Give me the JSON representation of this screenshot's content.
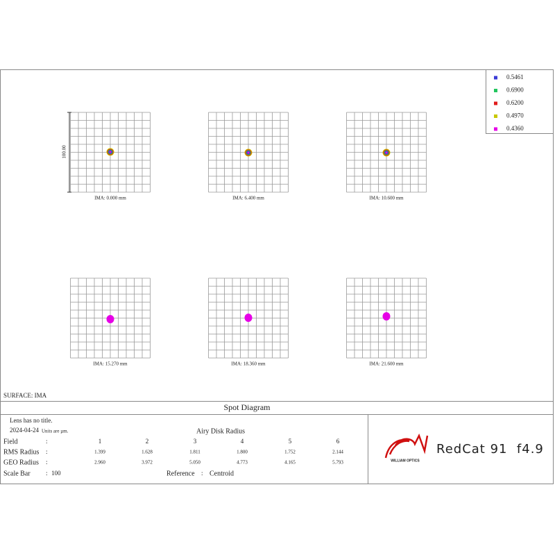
{
  "legend": {
    "items": [
      {
        "label": "0.5461",
        "color": "#3b3bd6"
      },
      {
        "label": "0.6900",
        "color": "#22c55e"
      },
      {
        "label": "0.6200",
        "color": "#e11d1d"
      },
      {
        "label": "0.4970",
        "color": "#c8c800"
      },
      {
        "label": "0.4360",
        "color": "#e600e6"
      }
    ]
  },
  "scale_label": "100.00",
  "panels": [
    {
      "label": "IMA: 0.000 mm"
    },
    {
      "label": "IMA: 6.400 mm"
    },
    {
      "label": "IMA: 10.600 mm"
    },
    {
      "label": "IMA: 15.270 mm"
    },
    {
      "label": "IMA: 18.360 mm"
    },
    {
      "label": "IMA: 21.600 mm"
    }
  ],
  "surface": "SURFACE: IMA",
  "title": "Spot Diagram",
  "info": {
    "lens": "Lens has no title.",
    "date": "2024-04-24",
    "units": "Units are µm.",
    "airy": "Airy Disk Radius",
    "rows": [
      [
        "Field",
        ":",
        "1",
        "2",
        "3",
        "4",
        "5",
        "6"
      ],
      [
        "RMS Radius",
        ":",
        "1.399",
        "1.628",
        "1.811",
        "1.800",
        "1.752",
        "2.144"
      ],
      [
        "GEO Radius",
        ":",
        "2.960",
        "3.972",
        "5.050",
        "4.773",
        "4.165",
        "5.793"
      ]
    ],
    "scale_bar": [
      "Scale Bar",
      ":",
      "100"
    ],
    "reference": [
      "Reference",
      ":",
      "Centroid"
    ]
  },
  "logo": {
    "brand": "WILLIAM OPTICS",
    "product": "RedCat 91  f4.9"
  }
}
